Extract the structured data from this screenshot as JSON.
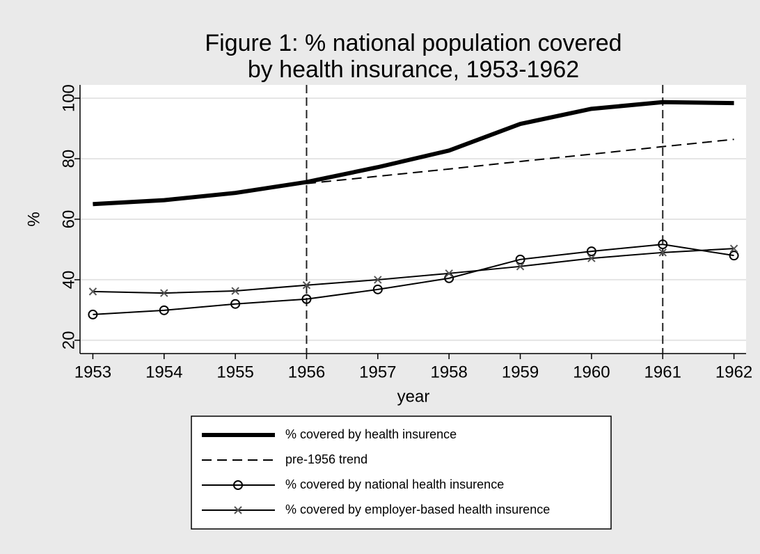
{
  "chart_data": {
    "type": "line",
    "title": [
      "Figure 1: % national population covered",
      "by health insurance, 1953-1962"
    ],
    "x_label": "year",
    "y_label": "%",
    "x": [
      1953,
      1954,
      1955,
      1956,
      1957,
      1958,
      1959,
      1960,
      1961,
      1962
    ],
    "series": [
      {
        "name": "% covered by health insurence",
        "color": "#000000",
        "width": 6,
        "dash": "none",
        "marker": "none",
        "values": [
          65,
          66.3,
          68.7,
          72.3,
          77.2,
          82.7,
          91.5,
          96.5,
          98.7,
          98.4
        ]
      },
      {
        "name": "pre-1956 trend",
        "color": "#000000",
        "width": 2,
        "dash": "14 8",
        "marker": "none",
        "values": [
          65,
          66.7,
          69,
          71.8,
          74.2,
          76.6,
          79.1,
          81.5,
          84,
          86.4
        ]
      },
      {
        "name": "% covered by national health insurence",
        "color": "#000000",
        "width": 2,
        "dash": "none",
        "marker": "circle",
        "values": [
          28.5,
          29.9,
          32,
          33.6,
          36.8,
          40.5,
          46.7,
          49.4,
          51.7,
          48
        ]
      },
      {
        "name": "% covered by employer-based health insurence",
        "color": "#000000",
        "marker_color": "#555555",
        "width": 2,
        "dash": "none",
        "marker": "x",
        "values": [
          36.1,
          35.6,
          36.3,
          38.2,
          40,
          42.1,
          44.4,
          47.1,
          49,
          50.3
        ]
      }
    ],
    "xlim": [
      1952.82,
      1962.17
    ],
    "xticks": [
      1953,
      1954,
      1955,
      1956,
      1957,
      1958,
      1959,
      1960,
      1961,
      1962
    ],
    "ylim": [
      15.6,
      104.4
    ],
    "yticks": [
      20,
      40,
      60,
      80,
      100
    ],
    "xlines": [
      1956,
      1961
    ],
    "grid": true,
    "legend": "bottom"
  }
}
